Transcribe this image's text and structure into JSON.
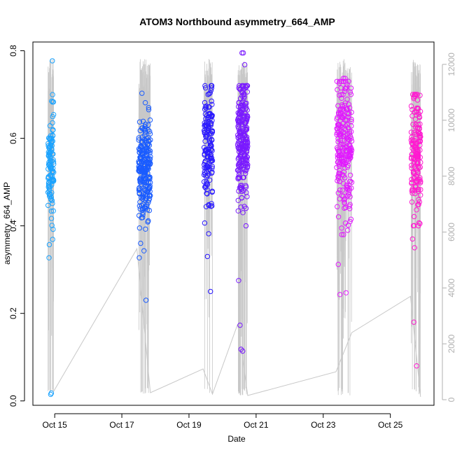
{
  "chart_data": {
    "type": "scatter",
    "title": "ATOM3 Northbound asymmetry_664_AMP",
    "xlabel": "Date",
    "ylabel": "asymmetry_664_AMP",
    "x_unit": "days since Oct 14 00:00",
    "xlim": [
      14.35,
      26.3
    ],
    "ylim": [
      -0.01,
      0.82
    ],
    "y_ticks": [
      0.0,
      0.2,
      0.4,
      0.6,
      0.8
    ],
    "y_tick_labels": [
      "0.0",
      "0.2",
      "0.4",
      "0.6",
      "0.8"
    ],
    "x_ticks": [
      15,
      17,
      19,
      21,
      23,
      25
    ],
    "x_tick_labels": [
      "Oct 15",
      "Oct 17",
      "Oct 19",
      "Oct 21",
      "Oct 23",
      "Oct 25"
    ],
    "secondary_axis": {
      "description": "overlay line series (grey)",
      "ylim": [
        -200,
        12800
      ],
      "ticks": [
        0,
        2000,
        4000,
        6000,
        8000,
        10000,
        12000
      ],
      "tick_labels": [
        "0",
        "2000",
        "4000",
        "6000",
        "8000",
        "10000",
        "12000"
      ]
    },
    "colors": {
      "overlay_line": "#c8c8c8",
      "series": [
        "#1aa3ff",
        "#1a5cff",
        "#2b1aff",
        "#7a1aff",
        "#e21aff",
        "#ff1ad0"
      ]
    },
    "clusters": [
      {
        "name": "Oct 14-15",
        "x_start": 14.8,
        "x_end": 14.97,
        "center": 0.54,
        "spread": 0.06,
        "min": 0.33,
        "max": 0.71,
        "n": 110,
        "outliers": [
          [
            14.93,
            0.777
          ],
          [
            14.91,
            0.685
          ],
          [
            14.88,
            0.015
          ],
          [
            14.9,
            0.018
          ],
          [
            14.83,
            0.327
          ],
          [
            14.84,
            0.357
          ],
          [
            14.95,
            0.392
          ]
        ]
      },
      {
        "name": "Oct 17",
        "x_start": 17.5,
        "x_end": 17.85,
        "center": 0.52,
        "spread": 0.06,
        "min": 0.33,
        "max": 0.7,
        "n": 230,
        "outliers": [
          [
            17.72,
            0.23
          ],
          [
            17.66,
            0.343
          ],
          [
            17.52,
            0.327
          ],
          [
            17.56,
            0.36
          ],
          [
            17.6,
            0.703
          ],
          [
            17.8,
            0.67
          ]
        ]
      },
      {
        "name": "Oct 19",
        "x_start": 19.45,
        "x_end": 19.7,
        "center": 0.58,
        "spread": 0.07,
        "min": 0.38,
        "max": 0.72,
        "n": 150,
        "outliers": [
          [
            19.55,
            0.33
          ],
          [
            19.64,
            0.25
          ],
          [
            19.68,
            0.72
          ]
        ]
      },
      {
        "name": "Oct 20",
        "x_start": 20.45,
        "x_end": 20.75,
        "center": 0.6,
        "spread": 0.07,
        "min": 0.4,
        "max": 0.72,
        "n": 240,
        "outliers": [
          [
            20.58,
            0.795
          ],
          [
            20.62,
            0.795
          ],
          [
            20.66,
            0.768
          ],
          [
            20.48,
            0.275
          ],
          [
            20.52,
            0.173
          ],
          [
            20.55,
            0.118
          ],
          [
            20.6,
            0.114
          ],
          [
            20.7,
            0.44
          ]
        ]
      },
      {
        "name": "Oct 23",
        "x_start": 23.4,
        "x_end": 23.85,
        "center": 0.58,
        "spread": 0.08,
        "min": 0.38,
        "max": 0.73,
        "n": 230,
        "outliers": [
          [
            23.6,
            0.737
          ],
          [
            23.65,
            0.737
          ],
          [
            23.45,
            0.312
          ],
          [
            23.5,
            0.243
          ],
          [
            23.68,
            0.247
          ],
          [
            23.55,
            0.395
          ],
          [
            23.8,
            0.41
          ]
        ]
      },
      {
        "name": "Oct 25",
        "x_start": 25.62,
        "x_end": 25.9,
        "center": 0.58,
        "spread": 0.07,
        "min": 0.4,
        "max": 0.7,
        "n": 160,
        "outliers": [
          [
            25.7,
            0.18
          ],
          [
            25.78,
            0.08
          ],
          [
            25.66,
            0.37
          ],
          [
            25.72,
            0.35
          ],
          [
            25.8,
            0.7
          ]
        ]
      }
    ],
    "overlay_segments": [
      {
        "x": 14.97,
        "y": 300
      },
      {
        "x": 17.45,
        "y": 5400
      },
      {
        "x": 17.85,
        "y": 250
      },
      {
        "x": 19.42,
        "y": 1100
      },
      {
        "x": 19.7,
        "y": 200
      },
      {
        "x": 20.45,
        "y": 2700
      },
      {
        "x": 20.75,
        "y": 150
      },
      {
        "x": 23.38,
        "y": 1000
      },
      {
        "x": 23.85,
        "y": 2400
      },
      {
        "x": 25.6,
        "y": 3700
      },
      {
        "x": 25.9,
        "y": 100
      }
    ]
  }
}
